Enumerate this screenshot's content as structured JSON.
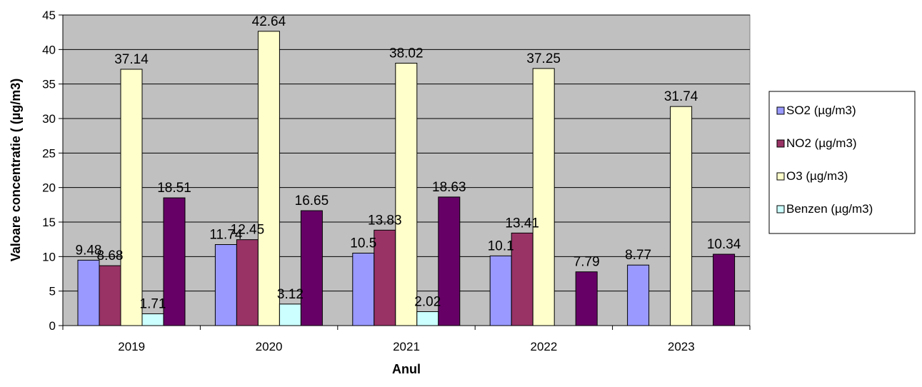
{
  "chart_data": {
    "type": "bar",
    "xlabel": "Anul",
    "ylabel": "Valoare concentratie ( (µg/m3)",
    "ylim": [
      0,
      45
    ],
    "yticks": [
      0,
      5,
      10,
      15,
      20,
      25,
      30,
      35,
      40,
      45
    ],
    "categories": [
      "2019",
      "2020",
      "2021",
      "2022",
      "2023"
    ],
    "grid": true,
    "legend_position": "right",
    "plot_background": "#c0c0c0",
    "series": [
      {
        "name": "SO2 (µg/m3)",
        "color": "#9999ff",
        "values": [
          9.48,
          11.74,
          10.5,
          10.1,
          8.77
        ],
        "labels": [
          "9.48",
          "11.74",
          "10.5",
          "10.1",
          "8.77"
        ]
      },
      {
        "name": "NO2 (µg/m3)",
        "color": "#993366",
        "values": [
          8.68,
          12.45,
          13.83,
          13.41,
          null
        ],
        "labels": [
          "8.68",
          "12.45",
          "13.83",
          "13.41",
          ""
        ]
      },
      {
        "name": "O3 (µg/m3)",
        "color": "#ffffcc",
        "values": [
          37.14,
          42.64,
          38.02,
          37.25,
          31.74
        ],
        "labels": [
          "37.14",
          "42.64",
          "38.02",
          "37.25",
          "31.74"
        ]
      },
      {
        "name": "Benzen (µg/m3)",
        "color": "#ccffff",
        "values": [
          1.71,
          3.12,
          2.02,
          null,
          null
        ],
        "labels": [
          "1.71",
          "3.12",
          "2.02",
          "",
          ""
        ]
      },
      {
        "name": "",
        "color": "#660066",
        "values": [
          18.51,
          16.65,
          18.63,
          7.79,
          10.34
        ],
        "labels": [
          "18.51",
          "16.65",
          "18.63",
          "7.79",
          "10.34"
        ]
      }
    ]
  }
}
